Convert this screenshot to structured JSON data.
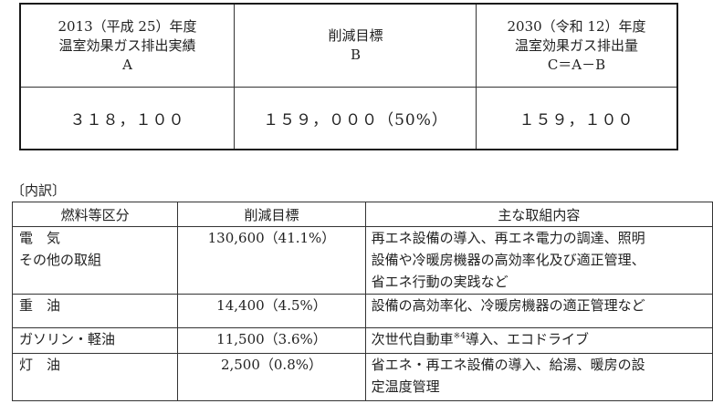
{
  "summary": {
    "col_a": {
      "head": [
        "2013（平成 25）年度",
        "温室効果ガス排出実績",
        "A"
      ],
      "value": "３１８，１００"
    },
    "col_b": {
      "head": [
        "削減目標",
        "B"
      ],
      "value": "１５９，０００（50%）"
    },
    "col_c": {
      "head": [
        "2030（令和 12）年度",
        "温室効果ガス排出量",
        "C＝A－B"
      ],
      "value": "１５９，１００"
    }
  },
  "breakdown": {
    "label": "〔内訳〕",
    "headers": [
      "燃料等区分",
      "削減目標",
      "主な取組内容"
    ],
    "rows": [
      {
        "category": [
          "電　気",
          "その他の取組"
        ],
        "target": "130,600（41.1%）",
        "actions": [
          "再エネ設備の導入、再エネ電力の調達、照明",
          "設備や冷暖房機器の高効率化及び適正管理、",
          "省エネ行動の実践など"
        ]
      },
      {
        "category": [
          "重　油"
        ],
        "target": "14,400（4.5%）",
        "actions": [
          "設備の高効率化、冷暖房機器の適正管理など"
        ]
      },
      {
        "category": [
          "ガソリン・軽油"
        ],
        "target": "11,500（3.6%）",
        "actions_pre": "次世代自動車",
        "actions_sup": "※4",
        "actions_post": "導入、エコドライブ"
      },
      {
        "category": [
          "灯　油"
        ],
        "target": "2,500（0.8%）",
        "actions": [
          "省エネ・再エネ設備の導入、給湯、暖房の設",
          "定温度管理"
        ]
      }
    ]
  }
}
